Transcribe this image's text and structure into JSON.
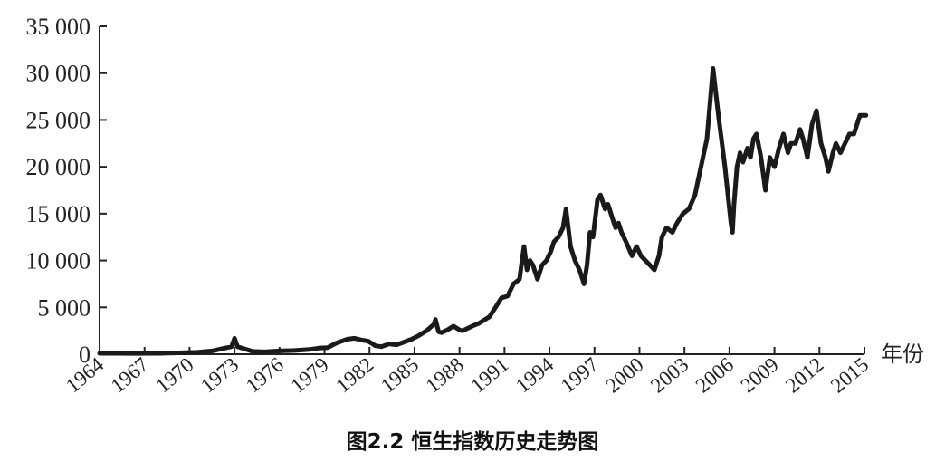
{
  "figure": {
    "caption": "图2.2 恒生指数历史走势图"
  },
  "chart_data": {
    "type": "line",
    "title": "图2.2 恒生指数历史走势图",
    "xlabel": "年份",
    "ylabel": "",
    "xlim": [
      1964,
      2015
    ],
    "ylim": [
      0,
      35000
    ],
    "grid": false,
    "legend": "none",
    "line_color": "#1a1a1a",
    "y_ticks": [
      0,
      5000,
      10000,
      15000,
      20000,
      25000,
      30000,
      35000
    ],
    "y_tick_labels": [
      "0",
      "5 000",
      "10 000",
      "15 000",
      "20 000",
      "25 000",
      "30 000",
      "35 000"
    ],
    "x_ticks": [
      1964,
      1967,
      1970,
      1973,
      1976,
      1979,
      1982,
      1985,
      1988,
      1991,
      1994,
      1997,
      2000,
      2003,
      2006,
      2009,
      2012,
      2015
    ],
    "x_tick_labels": [
      "1964",
      "1967",
      "1970",
      "1973",
      "1976",
      "1979",
      "1982",
      "1985",
      "1988",
      "1991",
      "1994",
      "1997",
      "2000",
      "2003",
      "2006",
      "2009",
      "2012",
      "2015"
    ],
    "series": [
      {
        "name": "",
        "x": [
          1964.0,
          1966.0,
          1968.0,
          1969.5,
          1970.5,
          1971.5,
          1972.2,
          1972.8,
          1973.0,
          1973.2,
          1973.6,
          1974.2,
          1975.0,
          1976.0,
          1977.0,
          1978.0,
          1978.6,
          1979.2,
          1979.8,
          1980.5,
          1981.0,
          1981.5,
          1981.9,
          1982.4,
          1982.8,
          1983.3,
          1983.8,
          1984.3,
          1984.8,
          1985.3,
          1985.8,
          1986.3,
          1986.4,
          1986.6,
          1986.8,
          1987.2,
          1987.6,
          1988.0,
          1988.2,
          1988.6,
          1989.0,
          1989.3,
          1989.6,
          1990.0,
          1990.4,
          1990.8,
          1991.2,
          1991.6,
          1992.0,
          1992.3,
          1992.5,
          1992.7,
          1992.9,
          1993.2,
          1993.5,
          1993.8,
          1994.1,
          1994.3,
          1994.6,
          1994.9,
          1995.1,
          1995.4,
          1995.7,
          1996.0,
          1996.3,
          1996.5,
          1996.7,
          1996.9,
          1997.2,
          1997.4,
          1997.7,
          1997.9,
          1998.2,
          1998.4,
          1998.6,
          1998.8,
          1999.1,
          1999.5,
          1999.8,
          2000.1,
          2000.4,
          2000.7,
          2001.0,
          2001.3,
          2001.5,
          2001.8,
          2002.2,
          2002.5,
          2002.9,
          2003.3,
          2003.7,
          2004.1,
          2004.5,
          2004.9,
          2005.3,
          2005.7,
          2006.1,
          2006.2,
          2006.3,
          2006.5,
          2006.7,
          2006.9,
          2007.2,
          2007.4,
          2007.6,
          2007.8,
          2008.1,
          2008.4,
          2008.7,
          2009.0,
          2009.3,
          2009.6,
          2009.9,
          2010.1,
          2010.4,
          2010.7,
          2010.9,
          2011.2,
          2011.5,
          2011.8,
          2012.1,
          2012.4,
          2012.6,
          2012.9,
          2013.1,
          2013.4,
          2013.7,
          2014.0,
          2014.3,
          2014.5,
          2014.7,
          2014.9,
          2015.1
        ],
        "y": [
          100,
          90,
          100,
          150,
          200,
          350,
          600,
          800,
          1700,
          800,
          600,
          300,
          250,
          350,
          400,
          500,
          650,
          700,
          1200,
          1600,
          1700,
          1500,
          1400,
          900,
          800,
          1100,
          1000,
          1300,
          1600,
          2000,
          2500,
          3200,
          3700,
          2400,
          2300,
          2600,
          3000,
          2600,
          2500,
          2800,
          3100,
          3300,
          3600,
          4000,
          5000,
          6000,
          6200,
          7500,
          8000,
          11500,
          9000,
          10000,
          9500,
          8000,
          9500,
          10000,
          11000,
          12000,
          12500,
          13500,
          15500,
          11500,
          10000,
          9000,
          7500,
          9500,
          13000,
          12500,
          16500,
          17000,
          15500,
          16000,
          14500,
          13500,
          14000,
          13000,
          12000,
          10500,
          11500,
          10500,
          10000,
          9500,
          9000,
          10500,
          12500,
          13500,
          13000,
          14000,
          15000,
          15500,
          17000,
          20000,
          23000,
          30500,
          25000,
          20000,
          14000,
          13000,
          16000,
          20000,
          21500,
          20500,
          22000,
          21000,
          23000,
          23500,
          21000,
          17500,
          21000,
          20000,
          22000,
          23500,
          21500,
          22500,
          22500,
          24000,
          23000,
          21000,
          24500,
          26000,
          22500,
          21000,
          19500,
          21500,
          22500,
          21500,
          22500,
          23500,
          23500,
          24500,
          25500,
          25500,
          25500
        ]
      }
    ]
  }
}
